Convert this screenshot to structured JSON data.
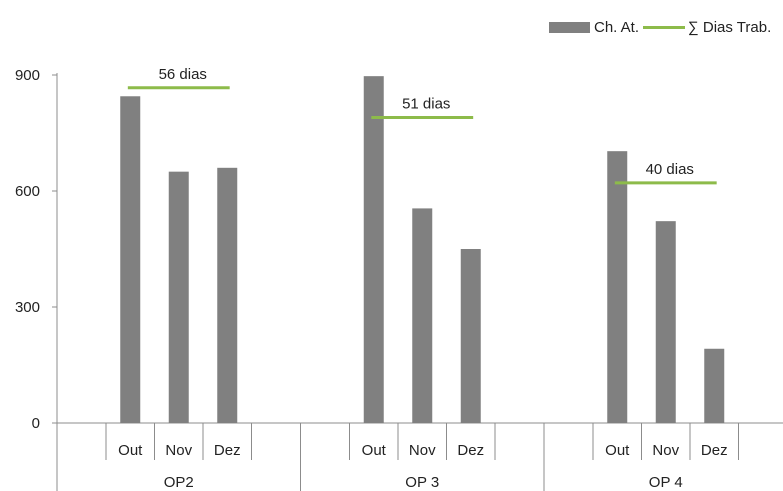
{
  "chart_data": {
    "type": "bar",
    "groups": [
      {
        "name": "OP2",
        "categories": [
          "Out",
          "Nov",
          "Dez"
        ],
        "values": [
          845,
          650,
          660
        ],
        "line_value": 867,
        "line_label": "56 dias"
      },
      {
        "name": "OP 3",
        "categories": [
          "Out",
          "Nov",
          "Dez"
        ],
        "values": [
          897,
          555,
          450
        ],
        "line_value": 790,
        "line_label": "51 dias"
      },
      {
        "name": "OP 4",
        "categories": [
          "Out",
          "Nov",
          "Dez"
        ],
        "values": [
          703,
          522,
          192
        ],
        "line_value": 621,
        "line_label": "40 dias"
      }
    ],
    "series": [
      {
        "name": "Ch. At.",
        "kind": "bar"
      },
      {
        "name": "∑ Dias Trab.",
        "kind": "line"
      }
    ],
    "y_ticks": [
      "0",
      "300",
      "600",
      "900"
    ],
    "ylim": [
      0,
      900
    ],
    "grid": false,
    "legend_position": "top-right"
  },
  "colors": {
    "bar": "#808080",
    "line": "#8dbb4a",
    "axis": "#8c8c8c"
  }
}
